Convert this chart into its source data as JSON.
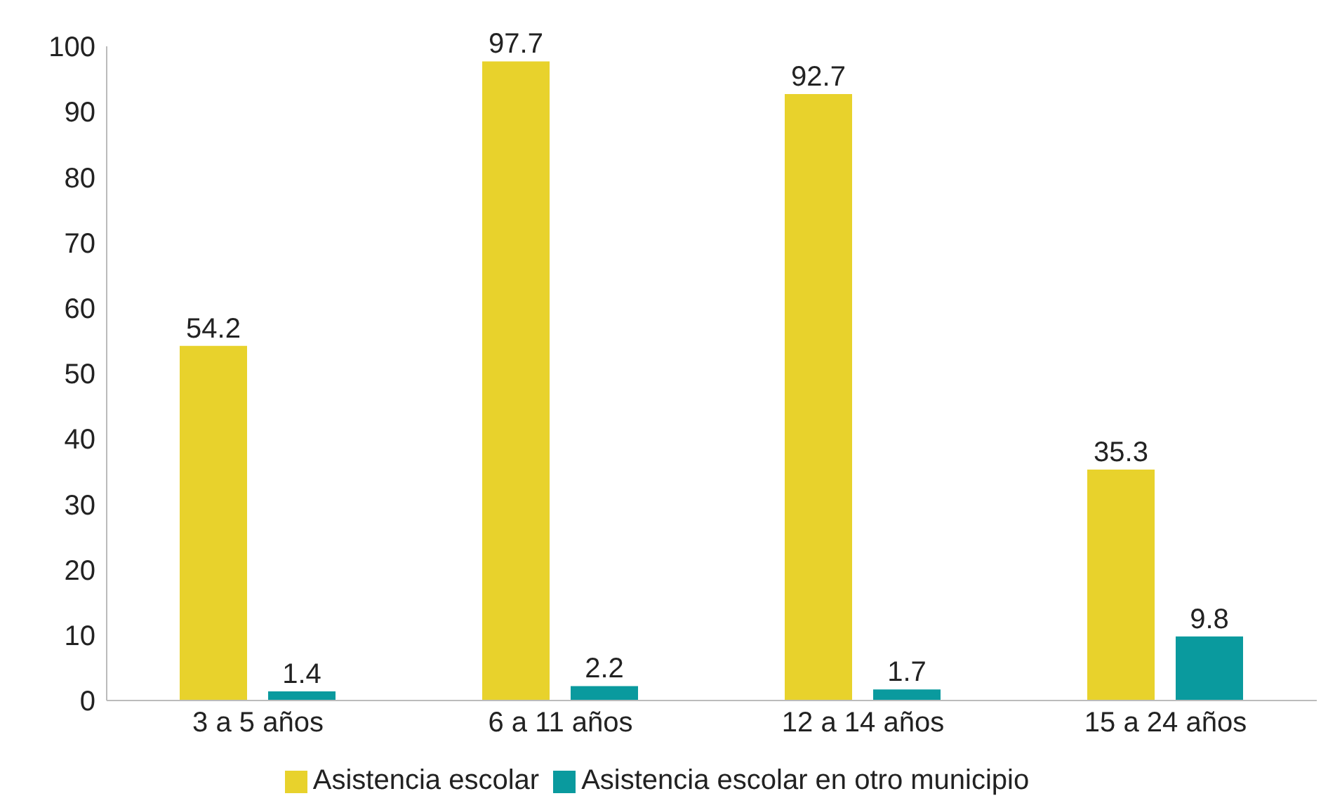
{
  "chart_data": {
    "type": "bar",
    "categories": [
      "3 a 5 años",
      "6 a 11 años",
      "12 a 14 años",
      "15 a 24 años"
    ],
    "series": [
      {
        "name": "Asistencia escolar",
        "color": "#e8d22c",
        "values": [
          54.2,
          97.7,
          92.7,
          35.3
        ]
      },
      {
        "name": "Asistencia escolar en otro municipio",
        "color": "#0a9a9e",
        "values": [
          1.4,
          2.2,
          1.7,
          9.8
        ]
      }
    ],
    "ylim": [
      0,
      100
    ],
    "yticks": [
      0,
      10,
      20,
      30,
      40,
      50,
      60,
      70,
      80,
      90,
      100
    ],
    "data_labels": true,
    "grid": false,
    "legend": "bottom"
  }
}
